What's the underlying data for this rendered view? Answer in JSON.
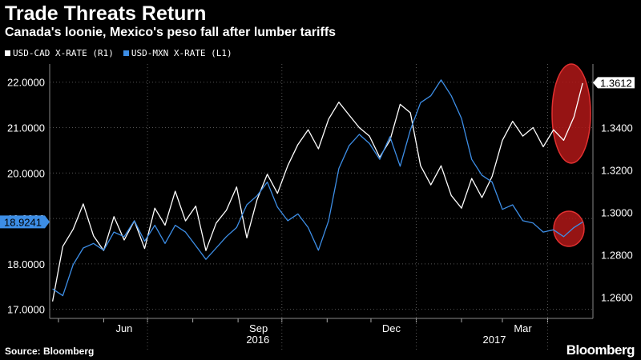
{
  "header": {
    "title": "Trade Threats Return",
    "subtitle": "Canada's loonie, Mexico's peso fall after lumber tariffs"
  },
  "footer": {
    "source": "Source: Bloomberg",
    "brand": "Bloomberg"
  },
  "colors": {
    "background": "#000000",
    "usdcad": "#ffffff",
    "usdmxn": "#3d8ee6",
    "highlight": "#b01818"
  },
  "chart_data": {
    "type": "line",
    "grid": true,
    "legend_position": "top-left",
    "x_ticks": [
      "Jun",
      "Sep",
      "Dec",
      "Mar"
    ],
    "x_year_labels": [
      "2016",
      "2017"
    ],
    "left_axis": {
      "ylim": [
        16.8,
        22.4
      ],
      "ticks": [
        "17.0000",
        "18.0000",
        "19.0000",
        "20.0000",
        "21.0000",
        "22.0000"
      ]
    },
    "right_axis": {
      "ylim": [
        1.25,
        1.37
      ],
      "ticks": [
        "1.2600",
        "1.2800",
        "1.3000",
        "1.3200",
        "1.3400"
      ]
    },
    "series": [
      {
        "name": "USD-CAD X-RATE (R1)",
        "axis": "right",
        "last_value": "1.3612",
        "x": [
          "2016-04-27",
          "2016-05-04",
          "2016-05-11",
          "2016-05-18",
          "2016-05-25",
          "2016-06-01",
          "2016-06-08",
          "2016-06-15",
          "2016-06-22",
          "2016-06-29",
          "2016-07-06",
          "2016-07-13",
          "2016-07-20",
          "2016-07-27",
          "2016-08-03",
          "2016-08-10",
          "2016-08-17",
          "2016-08-24",
          "2016-08-31",
          "2016-09-07",
          "2016-09-14",
          "2016-09-21",
          "2016-09-28",
          "2016-10-05",
          "2016-10-12",
          "2016-10-19",
          "2016-10-26",
          "2016-11-02",
          "2016-11-09",
          "2016-11-16",
          "2016-11-23",
          "2016-11-30",
          "2016-12-07",
          "2016-12-14",
          "2016-12-21",
          "2016-12-28",
          "2017-01-04",
          "2017-01-11",
          "2017-01-18",
          "2017-01-25",
          "2017-02-01",
          "2017-02-08",
          "2017-02-15",
          "2017-02-22",
          "2017-03-01",
          "2017-03-08",
          "2017-03-15",
          "2017-03-22",
          "2017-03-29",
          "2017-04-05",
          "2017-04-12",
          "2017-04-19",
          "2017-04-25"
        ],
        "values": [
          1.258,
          1.284,
          1.292,
          1.304,
          1.289,
          1.282,
          1.298,
          1.287,
          1.296,
          1.283,
          1.302,
          1.294,
          1.31,
          1.296,
          1.303,
          1.282,
          1.295,
          1.301,
          1.312,
          1.288,
          1.306,
          1.318,
          1.309,
          1.322,
          1.332,
          1.339,
          1.33,
          1.344,
          1.352,
          1.346,
          1.34,
          1.336,
          1.326,
          1.334,
          1.351,
          1.347,
          1.322,
          1.313,
          1.322,
          1.308,
          1.302,
          1.316,
          1.307,
          1.317,
          1.334,
          1.343,
          1.336,
          1.34,
          1.331,
          1.339,
          1.334,
          1.345,
          1.361
        ]
      },
      {
        "name": "USD-MXN X-RATE (L1)",
        "axis": "left",
        "last_value": "18.9241",
        "x": [
          "2016-04-27",
          "2016-05-04",
          "2016-05-11",
          "2016-05-18",
          "2016-05-25",
          "2016-06-01",
          "2016-06-08",
          "2016-06-15",
          "2016-06-22",
          "2016-06-29",
          "2016-07-06",
          "2016-07-13",
          "2016-07-20",
          "2016-07-27",
          "2016-08-03",
          "2016-08-10",
          "2016-08-17",
          "2016-08-24",
          "2016-08-31",
          "2016-09-07",
          "2016-09-14",
          "2016-09-21",
          "2016-09-28",
          "2016-10-05",
          "2016-10-12",
          "2016-10-19",
          "2016-10-26",
          "2016-11-02",
          "2016-11-09",
          "2016-11-16",
          "2016-11-23",
          "2016-11-30",
          "2016-12-07",
          "2016-12-14",
          "2016-12-21",
          "2016-12-28",
          "2017-01-04",
          "2017-01-11",
          "2017-01-18",
          "2017-01-25",
          "2017-02-01",
          "2017-02-08",
          "2017-02-15",
          "2017-02-22",
          "2017-03-01",
          "2017-03-08",
          "2017-03-15",
          "2017-03-22",
          "2017-03-29",
          "2017-04-05",
          "2017-04-12",
          "2017-04-19",
          "2017-04-25"
        ],
        "values": [
          17.45,
          17.3,
          17.98,
          18.35,
          18.45,
          18.3,
          18.7,
          18.6,
          18.95,
          18.5,
          18.85,
          18.45,
          18.85,
          18.7,
          18.4,
          18.1,
          18.35,
          18.6,
          18.8,
          19.3,
          19.5,
          19.8,
          19.25,
          18.95,
          19.1,
          18.8,
          18.3,
          18.95,
          20.1,
          20.6,
          20.85,
          20.65,
          20.3,
          20.8,
          20.15,
          20.95,
          21.55,
          21.7,
          22.05,
          21.7,
          21.2,
          20.3,
          19.95,
          19.8,
          19.2,
          19.3,
          18.95,
          18.9,
          18.7,
          18.75,
          18.6,
          18.8,
          18.92
        ]
      }
    ]
  }
}
